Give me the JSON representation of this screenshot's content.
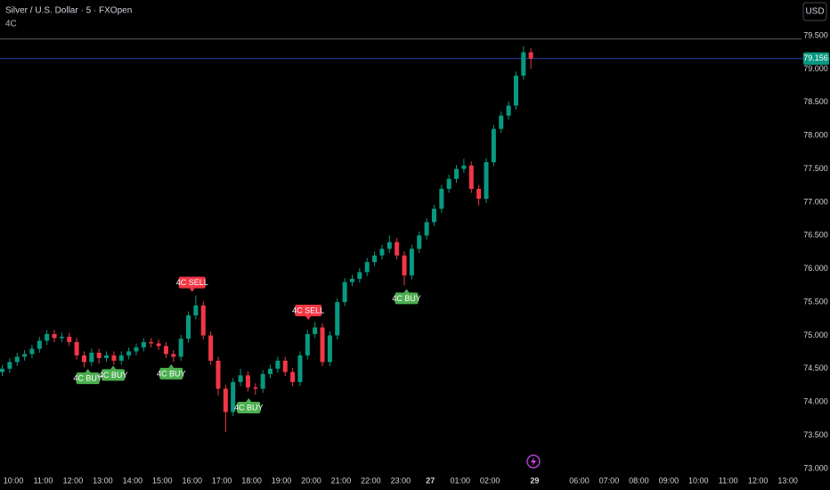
{
  "chart_data": {
    "type": "candlestick",
    "title": "Silver / U.S. Dollar · 5 · FXOpen",
    "indicator": "4C",
    "currency": "USD",
    "up_color": "#089981",
    "down_color": "#f23645",
    "x": [
      -0.375,
      -0.125,
      0.125,
      0.375,
      0.625,
      0.875,
      1.125,
      1.375,
      1.625,
      1.875,
      2.125,
      2.375,
      2.625,
      2.875,
      3.125,
      3.375,
      3.625,
      3.875,
      4.125,
      4.375,
      4.625,
      4.875,
      5.125,
      5.375,
      5.625,
      5.875,
      6.125,
      6.375,
      6.625,
      6.875,
      7.125,
      7.375,
      7.625,
      7.875,
      8.125,
      8.375,
      8.625,
      8.875,
      9.125,
      9.375,
      9.625,
      9.875,
      10.125,
      10.375,
      10.625,
      10.875,
      11.125,
      11.375,
      11.625,
      11.875,
      12.125,
      12.375,
      12.625,
      12.875,
      13.125,
      13.375,
      13.625,
      13.875,
      14.125,
      14.375,
      14.625,
      14.875,
      15.125,
      15.375,
      15.625,
      15.875,
      16.125,
      16.375,
      16.625,
      16.875,
      17.125,
      17.375
    ],
    "open": [
      74.45,
      74.5,
      74.6,
      74.68,
      74.72,
      74.8,
      74.92,
      75.02,
      74.96,
      74.98,
      74.9,
      74.7,
      74.6,
      74.74,
      74.66,
      74.7,
      74.62,
      74.7,
      74.76,
      74.82,
      74.9,
      74.88,
      74.84,
      74.72,
      74.68,
      74.95,
      75.3,
      75.45,
      75.0,
      74.62,
      74.2,
      73.85,
      74.3,
      74.4,
      74.22,
      74.2,
      74.42,
      74.5,
      74.62,
      74.45,
      74.3,
      74.7,
      75.02,
      75.12,
      74.6,
      75.0,
      75.5,
      75.8,
      75.85,
      75.95,
      76.1,
      76.2,
      76.3,
      76.4,
      76.2,
      75.9,
      76.3,
      76.5,
      76.7,
      76.9,
      77.2,
      77.35,
      77.5,
      77.55,
      77.2,
      77.05,
      77.6,
      78.1,
      78.3,
      78.45,
      78.9,
      79.25
    ],
    "high": [
      74.56,
      74.66,
      74.74,
      74.78,
      74.86,
      74.98,
      75.08,
      75.08,
      75.04,
      75.04,
      74.96,
      74.76,
      74.8,
      74.8,
      74.76,
      74.76,
      74.76,
      74.82,
      74.88,
      74.96,
      74.96,
      74.94,
      74.9,
      74.78,
      75.01,
      75.36,
      75.6,
      75.51,
      75.06,
      74.68,
      74.26,
      74.36,
      74.5,
      74.46,
      74.28,
      74.48,
      74.56,
      74.68,
      74.68,
      74.51,
      74.76,
      75.08,
      75.2,
      75.18,
      75.06,
      75.56,
      75.86,
      75.91,
      76.01,
      76.16,
      76.26,
      76.36,
      76.5,
      76.46,
      76.26,
      76.36,
      76.56,
      76.76,
      76.96,
      77.26,
      77.41,
      77.56,
      77.65,
      77.61,
      77.26,
      77.66,
      78.16,
      78.36,
      78.51,
      78.96,
      79.34,
      79.31
    ],
    "low": [
      74.39,
      74.44,
      74.54,
      74.62,
      74.66,
      74.74,
      74.86,
      74.9,
      74.9,
      74.84,
      74.64,
      74.52,
      74.54,
      74.58,
      74.6,
      74.56,
      74.56,
      74.64,
      74.7,
      74.76,
      74.82,
      74.78,
      74.66,
      74.6,
      74.62,
      74.89,
      75.24,
      74.94,
      74.56,
      74.1,
      73.55,
      73.79,
      74.24,
      74.16,
      74.11,
      74.14,
      74.36,
      74.44,
      74.39,
      74.24,
      74.24,
      74.64,
      74.96,
      74.54,
      74.54,
      74.94,
      75.44,
      75.74,
      75.79,
      75.89,
      76.04,
      76.14,
      76.24,
      76.14,
      75.75,
      75.84,
      76.24,
      76.44,
      76.64,
      76.84,
      77.14,
      77.29,
      77.44,
      77.14,
      76.95,
      76.99,
      77.54,
      78.04,
      78.24,
      78.39,
      78.84,
      79.0
    ],
    "close": [
      74.5,
      74.6,
      74.68,
      74.72,
      74.8,
      74.92,
      75.02,
      74.96,
      74.98,
      74.9,
      74.7,
      74.6,
      74.74,
      74.66,
      74.7,
      74.62,
      74.7,
      74.76,
      74.82,
      74.9,
      74.88,
      74.84,
      74.72,
      74.68,
      74.95,
      75.3,
      75.45,
      75.0,
      74.62,
      74.2,
      73.85,
      74.3,
      74.4,
      74.22,
      74.2,
      74.42,
      74.5,
      74.62,
      74.45,
      74.3,
      74.7,
      75.02,
      75.12,
      74.6,
      75.0,
      75.5,
      75.8,
      75.85,
      75.95,
      76.1,
      76.2,
      76.3,
      76.4,
      76.2,
      75.9,
      76.3,
      76.5,
      76.7,
      76.9,
      77.2,
      77.35,
      77.5,
      77.55,
      77.2,
      77.05,
      77.6,
      78.1,
      78.3,
      78.45,
      78.9,
      79.25,
      79.156
    ],
    "signals": [
      {
        "label": "4C BUY",
        "x": 2.5,
        "price": 74.55
      },
      {
        "label": "4C BUY",
        "x": 3.35,
        "price": 74.6
      },
      {
        "label": "4C BUY",
        "x": 5.3,
        "price": 74.62
      },
      {
        "label": "4C SELL",
        "x": 6.0,
        "price": 75.6
      },
      {
        "label": "4C BUY",
        "x": 7.9,
        "price": 74.11
      },
      {
        "label": "4C SELL",
        "x": 9.9,
        "price": 75.18
      },
      {
        "label": "4C BUY",
        "x": 13.2,
        "price": 75.75
      }
    ],
    "last_price": 79.156,
    "reference_line": 79.45,
    "xlim": [
      -0.45,
      26.46
    ],
    "ylim": [
      72.92,
      80.035
    ],
    "xticks": [
      {
        "value": 0,
        "label": "10:00"
      },
      {
        "value": 1,
        "label": "11:00"
      },
      {
        "value": 2,
        "label": "12:00"
      },
      {
        "value": 3,
        "label": "13:00"
      },
      {
        "value": 4,
        "label": "14:00"
      },
      {
        "value": 5,
        "label": "15:00"
      },
      {
        "value": 6,
        "label": "16:00"
      },
      {
        "value": 7,
        "label": "17:00"
      },
      {
        "value": 8,
        "label": "18:00"
      },
      {
        "value": 9,
        "label": "19:00"
      },
      {
        "value": 10,
        "label": "20:00"
      },
      {
        "value": 11,
        "label": "21:00"
      },
      {
        "value": 12,
        "label": "22:00"
      },
      {
        "value": 13,
        "label": "23:00"
      },
      {
        "value": 14,
        "label": "27"
      },
      {
        "value": 15,
        "label": "01:00"
      },
      {
        "value": 16,
        "label": "02:00"
      },
      {
        "value": 17.5,
        "label": "29"
      },
      {
        "value": 19,
        "label": "06:00"
      },
      {
        "value": 20,
        "label": "07:00"
      },
      {
        "value": 21,
        "label": "08:00"
      },
      {
        "value": 22,
        "label": "09:00"
      },
      {
        "value": 23,
        "label": "10:00"
      },
      {
        "value": 24,
        "label": "11:00"
      },
      {
        "value": 25,
        "label": "12:00"
      },
      {
        "value": 26,
        "label": "13:00"
      }
    ],
    "yticks": [
      {
        "value": 73.0,
        "label": "73.000"
      },
      {
        "value": 73.5,
        "label": "73.500"
      },
      {
        "value": 74.0,
        "label": "74.000"
      },
      {
        "value": 74.5,
        "label": "74.500"
      },
      {
        "value": 75.0,
        "label": "75.000"
      },
      {
        "value": 75.5,
        "label": "75.500"
      },
      {
        "value": 76.0,
        "label": "76.000"
      },
      {
        "value": 76.5,
        "label": "76.500"
      },
      {
        "value": 77.0,
        "label": "77.000"
      },
      {
        "value": 77.5,
        "label": "77.500"
      },
      {
        "value": 78.0,
        "label": "78.000"
      },
      {
        "value": 78.5,
        "label": "78.500"
      },
      {
        "value": 79.0,
        "label": "79.000"
      },
      {
        "value": 79.5,
        "label": "79.500"
      }
    ]
  }
}
